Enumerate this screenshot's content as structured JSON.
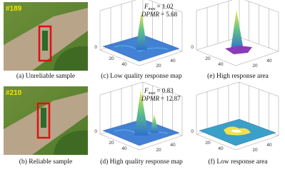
{
  "panels": [
    {
      "caption": "(a) Unreliable sample",
      "frame_label": "#189"
    },
    {
      "caption": "(c) Low quality response map",
      "annotation": {
        "f_symbol": "F",
        "f_sub": "max",
        "f_value": "= 1.02",
        "dpmr_symbol": "DPMR",
        "dpmr_value": "= 5.68"
      },
      "x_ticks": [
        "20",
        "40"
      ],
      "y_ticks": [
        "20",
        "40"
      ],
      "z_ticks": [
        "0"
      ]
    },
    {
      "caption": "(e) High response area",
      "x_ticks": [
        "20",
        "40"
      ],
      "y_ticks": [
        "20",
        "40"
      ],
      "z_ticks": [
        "0"
      ]
    },
    {
      "caption": "(b) Reliable sample",
      "frame_label": "#210"
    },
    {
      "caption": "(d) High quality response map",
      "annotation": {
        "f_symbol": "F",
        "f_sub": "max",
        "f_value": "= 0.83",
        "dpmr_symbol": "DPMR",
        "dpmr_value": "= 12.87"
      },
      "x_ticks": [
        "20",
        "40"
      ],
      "y_ticks": [
        "20",
        "40"
      ],
      "z_ticks": [
        "0"
      ]
    },
    {
      "caption": "(f) Low response area",
      "x_ticks": [
        "20",
        "40"
      ],
      "y_ticks": [
        "20",
        "40"
      ],
      "z_ticks": [
        "0"
      ]
    }
  ]
}
